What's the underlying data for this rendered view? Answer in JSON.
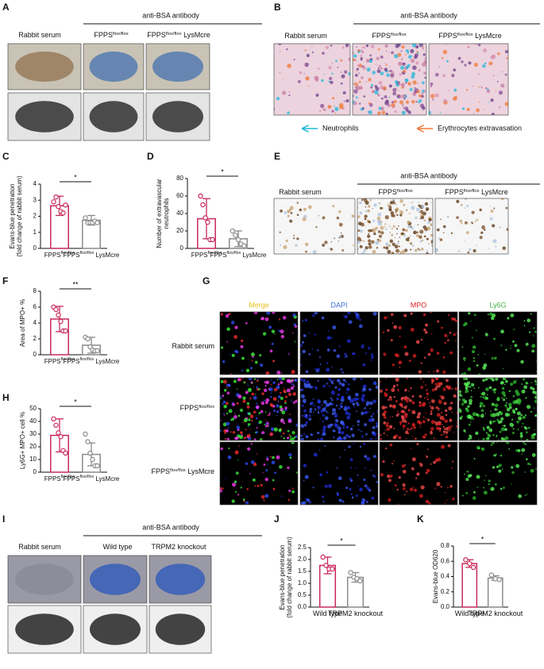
{
  "panels": {
    "A": {
      "letter": "A",
      "group": "anti-BSA antibody",
      "columns": [
        [
          "Rabbit serum"
        ],
        [
          "FPPS",
          "flox/flox"
        ],
        [
          "FPPS",
          "flox/flox",
          " LysMcre"
        ]
      ]
    },
    "B": {
      "letter": "B",
      "group": "anti-BSA antibody",
      "columns": [
        [
          "Rabbit serum"
        ],
        [
          "FPPS",
          "flox/flox"
        ],
        [
          "FPPS",
          "flox/flox",
          " LysMcre"
        ]
      ],
      "legend": [
        "Neutrophils",
        "Erythrocytes extravasation"
      ]
    },
    "E": {
      "letter": "E",
      "group": "anti-BSA antibody",
      "columns": [
        [
          "Rabbit serum"
        ],
        [
          "FPPS",
          "flox/flox"
        ],
        [
          "FPPS",
          "flox/flox",
          " LysMcre"
        ]
      ]
    },
    "G": {
      "letter": "G",
      "channels": [
        "Merge",
        "DAPI",
        "MPO",
        "Ly6G"
      ],
      "rows": [
        [
          "Rabbit serum"
        ],
        [
          "FPPS",
          "flox/flox"
        ],
        [
          "FPPS",
          "flox/flox",
          " LysMcre"
        ]
      ]
    },
    "I": {
      "letter": "I",
      "group": "anti-BSA antibody",
      "columns": [
        [
          "Rabbit serum"
        ],
        [
          "Wild type"
        ],
        [
          "TRPM2 knockout"
        ]
      ]
    }
  },
  "chart_data": [
    {
      "panel": "C",
      "type": "bar",
      "ylabel": [
        "Evans-blue penetration",
        "(fold change of rabbit serum)"
      ],
      "categories": [
        [
          "FPPS",
          "flox/flox"
        ],
        [
          "FPPS",
          "flox/flox",
          " LysMcre"
        ]
      ],
      "colors": [
        "#c8285a",
        "#8a8a8a"
      ],
      "values": [
        2.65,
        1.75
      ],
      "errors": [
        0.6,
        0.3
      ],
      "points": [
        [
          2.9,
          3.2,
          2.6,
          2.3,
          2.2,
          2.7
        ],
        [
          1.9,
          1.6,
          1.6,
          1.6,
          1.7,
          1.6
        ]
      ],
      "ylim": [
        0,
        4
      ],
      "yticks": [
        0,
        1,
        2,
        3,
        4
      ],
      "significance": "*"
    },
    {
      "panel": "D",
      "type": "bar",
      "ylabel": [
        "Number of extravascular",
        "neutrophils"
      ],
      "categories": [
        [
          "FPPS",
          "flox/flox"
        ],
        [
          "FPPS",
          "flox/flox",
          " LysMcre"
        ]
      ],
      "colors": [
        "#c8285a",
        "#8a8a8a"
      ],
      "values": [
        34,
        11
      ],
      "errors": [
        23,
        9
      ],
      "points": [
        [
          60,
          50,
          35,
          30,
          10,
          10
        ],
        [
          20,
          15,
          10,
          5,
          3
        ]
      ],
      "ylim": [
        0,
        80
      ],
      "yticks": [
        0,
        20,
        40,
        60,
        80
      ],
      "significance": "*"
    },
    {
      "panel": "F",
      "type": "bar",
      "ylabel": [
        "Area of MPO+ %"
      ],
      "categories": [
        [
          "FPPS",
          "flox/flox"
        ],
        [
          "FPPS",
          "flox/flox",
          " LysMcre"
        ]
      ],
      "colors": [
        "#c8285a",
        "#8a8a8a"
      ],
      "values": [
        4.5,
        1.2
      ],
      "errors": [
        1.6,
        1.0
      ],
      "points": [
        [
          6,
          5.7,
          5,
          4.2,
          3,
          3
        ],
        [
          2.2,
          2,
          1,
          0.6,
          0.5,
          0.5
        ]
      ],
      "ylim": [
        0,
        8
      ],
      "yticks": [
        0,
        2,
        4,
        6,
        8
      ],
      "significance": "**"
    },
    {
      "panel": "H",
      "type": "bar",
      "ylabel": [
        "Ly6G+ MPO+ cell %"
      ],
      "categories": [
        [
          "FPPS",
          "flox/flox"
        ],
        [
          "FPPS",
          "flox/flox",
          " LysMcre"
        ]
      ],
      "colors": [
        "#c8285a",
        "#8a8a8a"
      ],
      "values": [
        29,
        14
      ],
      "errors": [
        13,
        9
      ],
      "points": [
        [
          42,
          37,
          31,
          28,
          17,
          15
        ],
        [
          30,
          24,
          15,
          10,
          5,
          5
        ]
      ],
      "ylim": [
        0,
        50
      ],
      "yticks": [
        0,
        10,
        20,
        30,
        40,
        50
      ],
      "significance": "*"
    },
    {
      "panel": "J",
      "type": "bar",
      "ylabel": [
        "Evans-blue penetration",
        "(fold change of rabbit serum)"
      ],
      "categories": [
        [
          "Wild type"
        ],
        [
          "TRPM2 knockout"
        ]
      ],
      "colors": [
        "#c8285a",
        "#8a8a8a"
      ],
      "values": [
        1.75,
        1.25
      ],
      "errors": [
        0.35,
        0.2
      ],
      "points": [
        [
          2.1,
          1.75,
          1.6,
          1.6
        ],
        [
          1.45,
          1.25,
          1.2,
          1.1
        ]
      ],
      "ylim": [
        0,
        2.5
      ],
      "yticks": [
        {
          "value": 0,
          "label": "0.0"
        },
        0.5,
        {
          "value": 1,
          "label": "1.0"
        },
        1.5,
        {
          "value": 2,
          "label": "2.0"
        },
        2.5
      ],
      "significance": "*"
    },
    {
      "panel": "K",
      "type": "bar",
      "ylabel": [
        "Evans-blue OD620"
      ],
      "categories": [
        [
          "Wild type"
        ],
        [
          "TRPM2 knockout"
        ]
      ],
      "colors": [
        "#c8285a",
        "#8a8a8a"
      ],
      "values": [
        0.57,
        0.38
      ],
      "errors": [
        0.05,
        0.03
      ],
      "points": [
        [
          0.62,
          0.57,
          0.52
        ],
        [
          0.42,
          0.37,
          0.36
        ]
      ],
      "ylim": [
        0,
        0.8
      ],
      "yticks": [
        {
          "value": 0,
          "label": "0.0"
        },
        0.2,
        0.4,
        0.6,
        0.8
      ],
      "significance": "*"
    }
  ]
}
